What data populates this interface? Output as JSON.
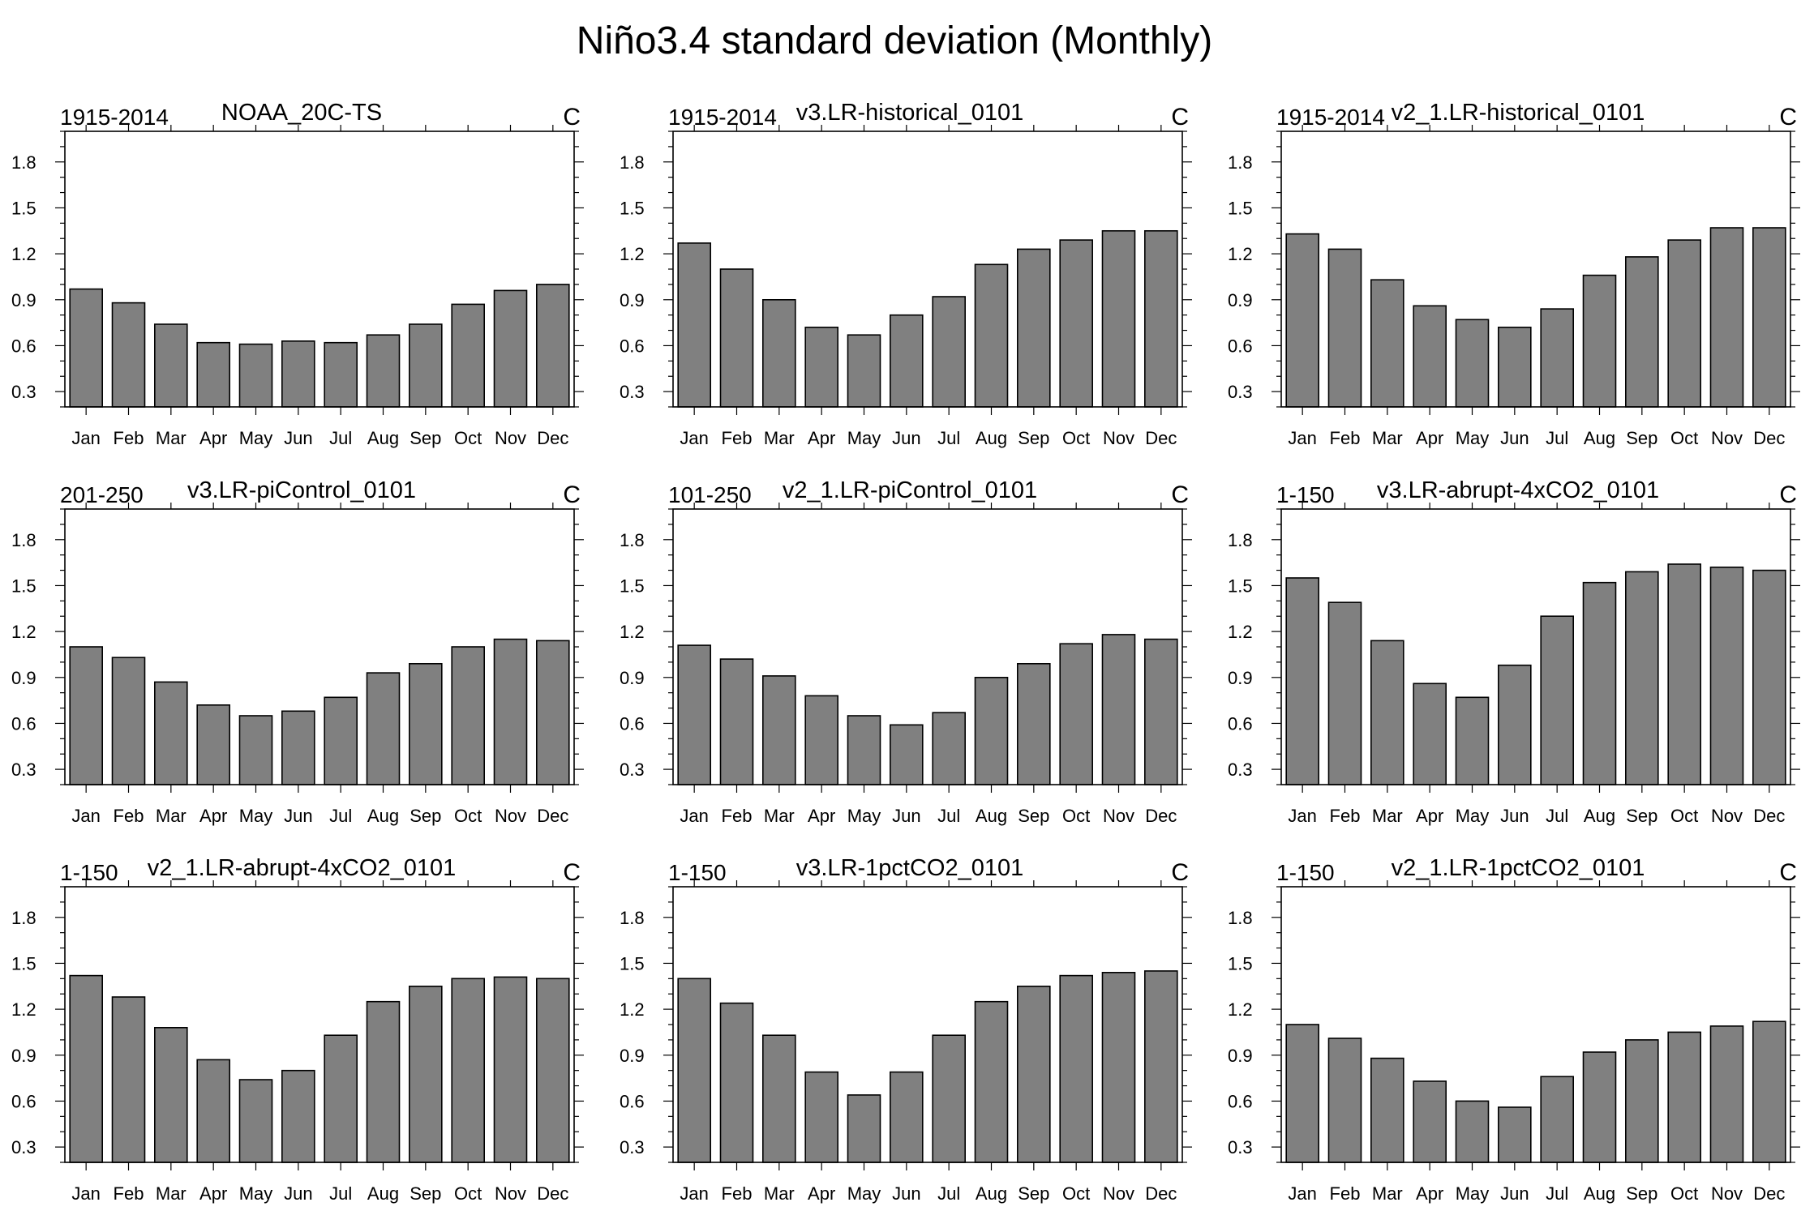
{
  "figure": {
    "title": "Niño3.4 standard deviation (Monthly)"
  },
  "style": {
    "bar_fill": "#808080",
    "bar_stroke": "#000000",
    "frame_stroke": "#000000",
    "background": "#ffffff"
  },
  "chart_data": [
    {
      "type": "bar",
      "title": "NOAA_20C-TS",
      "left_label": "1915-2014",
      "right_label": "C",
      "categories": [
        "Jan",
        "Feb",
        "Mar",
        "Apr",
        "May",
        "Jun",
        "Jul",
        "Aug",
        "Sep",
        "Oct",
        "Nov",
        "Dec"
      ],
      "values": [
        0.97,
        0.88,
        0.74,
        0.62,
        0.61,
        0.63,
        0.62,
        0.67,
        0.74,
        0.87,
        0.96,
        1.0
      ],
      "ylim": [
        0.2,
        2.0
      ],
      "yticks": [
        "0.3",
        "0.6",
        "0.9",
        "1.2",
        "1.5",
        "1.8"
      ]
    },
    {
      "type": "bar",
      "title": "v3.LR-historical_0101",
      "left_label": "1915-2014",
      "right_label": "C",
      "categories": [
        "Jan",
        "Feb",
        "Mar",
        "Apr",
        "May",
        "Jun",
        "Jul",
        "Aug",
        "Sep",
        "Oct",
        "Nov",
        "Dec"
      ],
      "values": [
        1.27,
        1.1,
        0.9,
        0.72,
        0.67,
        0.8,
        0.92,
        1.13,
        1.23,
        1.29,
        1.35,
        1.35
      ],
      "ylim": [
        0.2,
        2.0
      ],
      "yticks": [
        "0.3",
        "0.6",
        "0.9",
        "1.2",
        "1.5",
        "1.8"
      ]
    },
    {
      "type": "bar",
      "title": "v2_1.LR-historical_0101",
      "left_label": "1915-2014",
      "right_label": "C",
      "categories": [
        "Jan",
        "Feb",
        "Mar",
        "Apr",
        "May",
        "Jun",
        "Jul",
        "Aug",
        "Sep",
        "Oct",
        "Nov",
        "Dec"
      ],
      "values": [
        1.33,
        1.23,
        1.03,
        0.86,
        0.77,
        0.72,
        0.84,
        1.06,
        1.18,
        1.29,
        1.37,
        1.37
      ],
      "ylim": [
        0.2,
        2.0
      ],
      "yticks": [
        "0.3",
        "0.6",
        "0.9",
        "1.2",
        "1.5",
        "1.8"
      ]
    },
    {
      "type": "bar",
      "title": "v3.LR-piControl_0101",
      "left_label": "201-250",
      "right_label": "C",
      "categories": [
        "Jan",
        "Feb",
        "Mar",
        "Apr",
        "May",
        "Jun",
        "Jul",
        "Aug",
        "Sep",
        "Oct",
        "Nov",
        "Dec"
      ],
      "values": [
        1.1,
        1.03,
        0.87,
        0.72,
        0.65,
        0.68,
        0.77,
        0.93,
        0.99,
        1.1,
        1.15,
        1.14
      ],
      "ylim": [
        0.2,
        2.0
      ],
      "yticks": [
        "0.3",
        "0.6",
        "0.9",
        "1.2",
        "1.5",
        "1.8"
      ]
    },
    {
      "type": "bar",
      "title": "v2_1.LR-piControl_0101",
      "left_label": "101-250",
      "right_label": "C",
      "categories": [
        "Jan",
        "Feb",
        "Mar",
        "Apr",
        "May",
        "Jun",
        "Jul",
        "Aug",
        "Sep",
        "Oct",
        "Nov",
        "Dec"
      ],
      "values": [
        1.11,
        1.02,
        0.91,
        0.78,
        0.65,
        0.59,
        0.67,
        0.9,
        0.99,
        1.12,
        1.18,
        1.15
      ],
      "ylim": [
        0.2,
        2.0
      ],
      "yticks": [
        "0.3",
        "0.6",
        "0.9",
        "1.2",
        "1.5",
        "1.8"
      ]
    },
    {
      "type": "bar",
      "title": "v3.LR-abrupt-4xCO2_0101",
      "left_label": "1-150",
      "right_label": "C",
      "categories": [
        "Jan",
        "Feb",
        "Mar",
        "Apr",
        "May",
        "Jun",
        "Jul",
        "Aug",
        "Sep",
        "Oct",
        "Nov",
        "Dec"
      ],
      "values": [
        1.55,
        1.39,
        1.14,
        0.86,
        0.77,
        0.98,
        1.3,
        1.52,
        1.59,
        1.64,
        1.62,
        1.6
      ],
      "ylim": [
        0.2,
        2.0
      ],
      "yticks": [
        "0.3",
        "0.6",
        "0.9",
        "1.2",
        "1.5",
        "1.8"
      ]
    },
    {
      "type": "bar",
      "title": "v2_1.LR-abrupt-4xCO2_0101",
      "left_label": "1-150",
      "right_label": "C",
      "categories": [
        "Jan",
        "Feb",
        "Mar",
        "Apr",
        "May",
        "Jun",
        "Jul",
        "Aug",
        "Sep",
        "Oct",
        "Nov",
        "Dec"
      ],
      "values": [
        1.42,
        1.28,
        1.08,
        0.87,
        0.74,
        0.8,
        1.03,
        1.25,
        1.35,
        1.4,
        1.41,
        1.4
      ],
      "ylim": [
        0.2,
        2.0
      ],
      "yticks": [
        "0.3",
        "0.6",
        "0.9",
        "1.2",
        "1.5",
        "1.8"
      ]
    },
    {
      "type": "bar",
      "title": "v3.LR-1pctCO2_0101",
      "left_label": "1-150",
      "right_label": "C",
      "categories": [
        "Jan",
        "Feb",
        "Mar",
        "Apr",
        "May",
        "Jun",
        "Jul",
        "Aug",
        "Sep",
        "Oct",
        "Nov",
        "Dec"
      ],
      "values": [
        1.4,
        1.24,
        1.03,
        0.79,
        0.64,
        0.79,
        1.03,
        1.25,
        1.35,
        1.42,
        1.44,
        1.45
      ],
      "ylim": [
        0.2,
        2.0
      ],
      "yticks": [
        "0.3",
        "0.6",
        "0.9",
        "1.2",
        "1.5",
        "1.8"
      ]
    },
    {
      "type": "bar",
      "title": "v2_1.LR-1pctCO2_0101",
      "left_label": "1-150",
      "right_label": "C",
      "categories": [
        "Jan",
        "Feb",
        "Mar",
        "Apr",
        "May",
        "Jun",
        "Jul",
        "Aug",
        "Sep",
        "Oct",
        "Nov",
        "Dec"
      ],
      "values": [
        1.1,
        1.01,
        0.88,
        0.73,
        0.6,
        0.56,
        0.76,
        0.92,
        1.0,
        1.05,
        1.09,
        1.12
      ],
      "ylim": [
        0.2,
        2.0
      ],
      "yticks": [
        "0.3",
        "0.6",
        "0.9",
        "1.2",
        "1.5",
        "1.8"
      ]
    }
  ]
}
